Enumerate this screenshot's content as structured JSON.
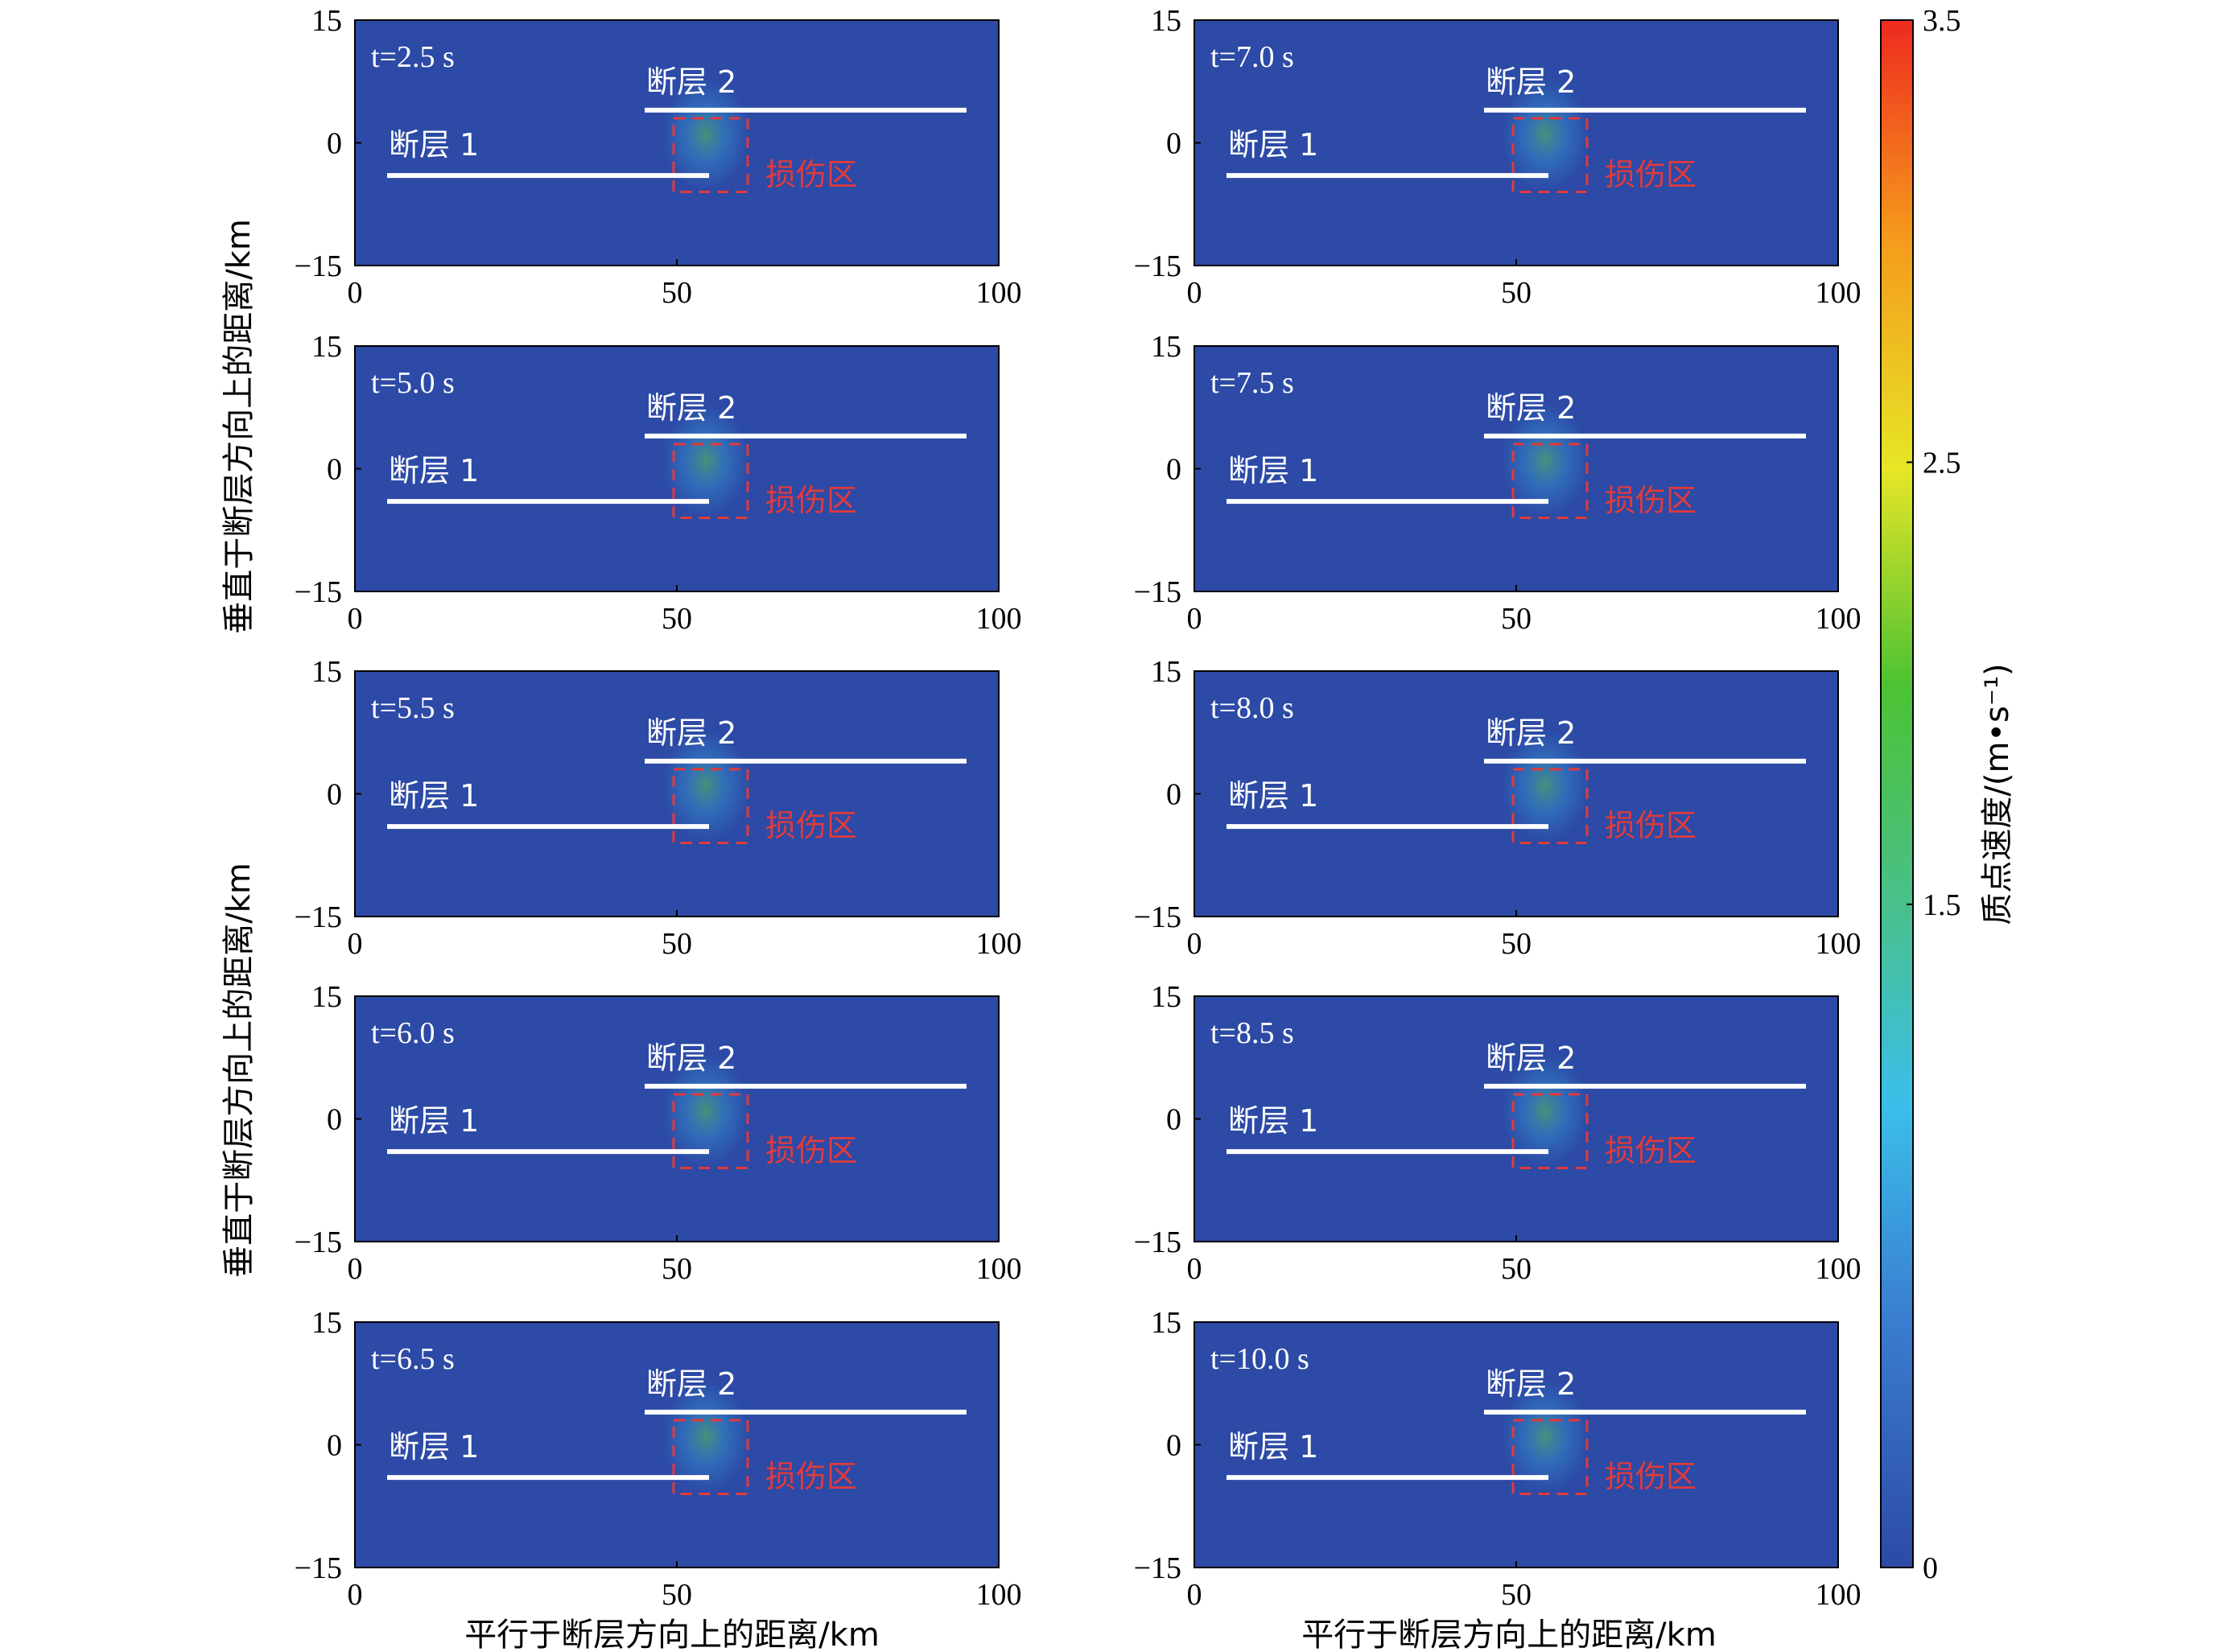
{
  "chart_data": {
    "type": "heatmap",
    "panels": [
      {
        "time_label": "t=2.5 s",
        "x_ticks": [
          "0",
          "50",
          "100"
        ],
        "y_ticks": [
          "15",
          "0",
          "−15"
        ]
      },
      {
        "time_label": "t=7.0 s",
        "x_ticks": [
          "0",
          "50",
          "100"
        ],
        "y_ticks": [
          "15",
          "0",
          "−15"
        ]
      },
      {
        "time_label": "t=5.0 s",
        "x_ticks": [
          "0",
          "50",
          "100"
        ],
        "y_ticks": [
          "15",
          "0",
          "−15"
        ]
      },
      {
        "time_label": "t=7.5 s",
        "x_ticks": [
          "0",
          "50",
          "100"
        ],
        "y_ticks": [
          "15",
          "0",
          "−15"
        ]
      },
      {
        "time_label": "t=5.5 s",
        "x_ticks": [
          "0",
          "50",
          "100"
        ],
        "y_ticks": [
          "15",
          "0",
          "−15"
        ]
      },
      {
        "time_label": "t=8.0 s",
        "x_ticks": [
          "0",
          "50",
          "100"
        ],
        "y_ticks": [
          "15",
          "0",
          "−15"
        ]
      },
      {
        "time_label": "t=6.0 s",
        "x_ticks": [
          "0",
          "50",
          "100"
        ],
        "y_ticks": [
          "15",
          "0",
          "−15"
        ]
      },
      {
        "time_label": "t=8.5 s",
        "x_ticks": [
          "0",
          "50",
          "100"
        ],
        "y_ticks": [
          "15",
          "0",
          "−15"
        ]
      },
      {
        "time_label": "t=6.5 s",
        "x_ticks": [
          "0",
          "50",
          "100"
        ],
        "y_ticks": [
          "15",
          "0",
          "−15"
        ]
      },
      {
        "time_label": "t=10.0 s",
        "x_ticks": [
          "0",
          "50",
          "100"
        ],
        "y_ticks": [
          "15",
          "0",
          "−15"
        ]
      }
    ],
    "xlim": [
      0,
      100
    ],
    "ylim": [
      -15,
      15
    ],
    "fault1": {
      "label": "断层 1",
      "x": [
        5,
        55
      ],
      "y": -4
    },
    "fault2": {
      "label": "断层 2",
      "x": [
        45,
        95
      ],
      "y": 4
    },
    "damage_zone": {
      "label": "损伤区",
      "x": [
        49.5,
        61
      ],
      "y": [
        -6,
        3
      ]
    },
    "xlabel": "平行于断层方向上的距离/km",
    "ylabel": "垂直于断层方向上的距离/km",
    "colorbar": {
      "label": "质点速度/(m•s⁻¹)",
      "range": [
        0,
        3.5
      ],
      "tick_labels": [
        "0",
        "1.5",
        "2.5",
        "3.5"
      ],
      "tick_values": [
        0,
        1.5,
        2.5,
        3.5
      ],
      "colors": [
        "#2c4aa6",
        "#3bbfea",
        "#49c08a",
        "#4cc233",
        "#e6e626",
        "#f59a1c",
        "#ee2a1f"
      ]
    },
    "background_color": "#2c4aa6"
  }
}
